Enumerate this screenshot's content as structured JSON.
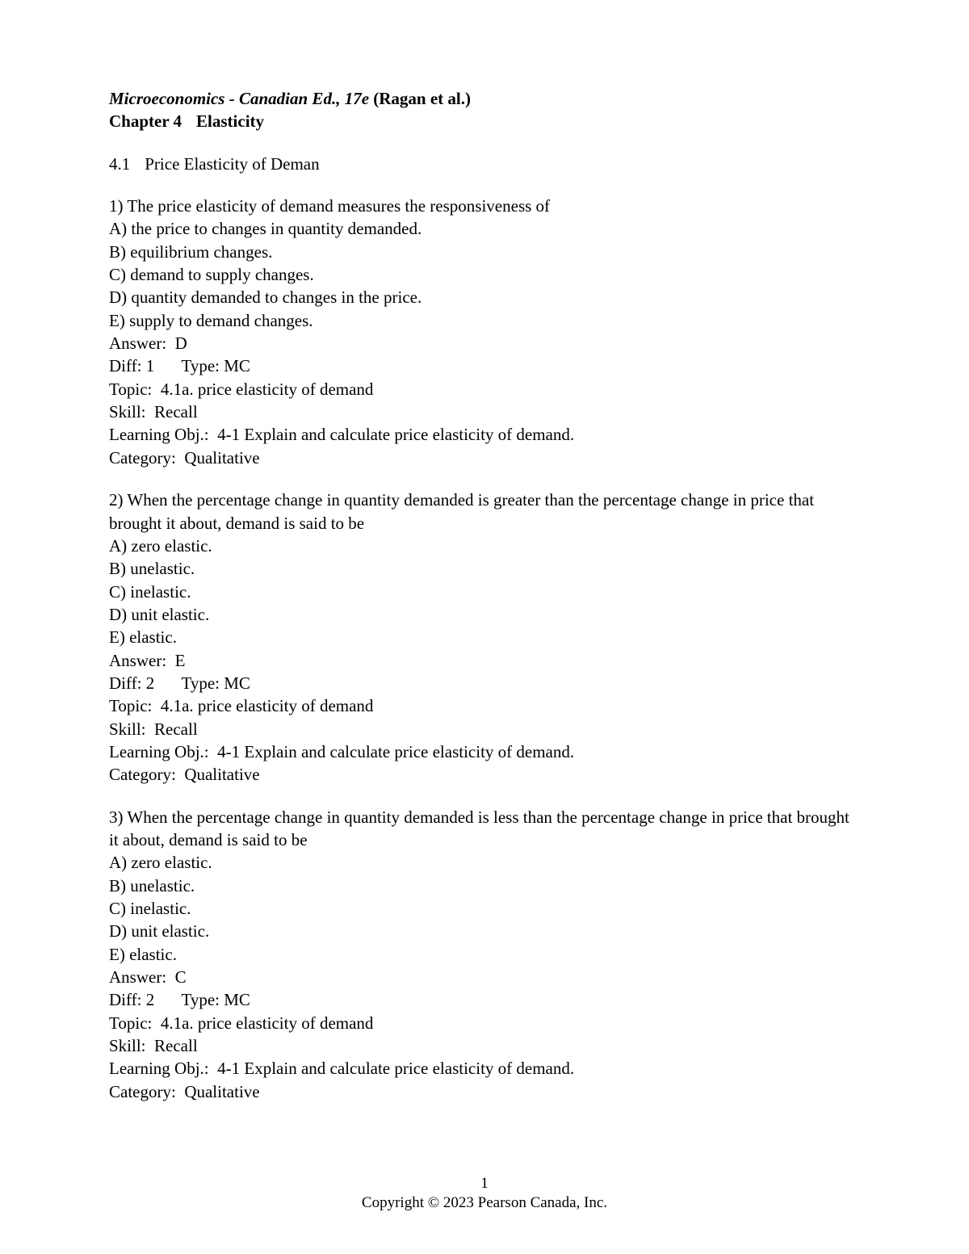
{
  "header": {
    "book_title": "Microeconomics",
    "edition": "Canadian Ed., 17e",
    "authors": "(Ragan et al.)",
    "chapter_label": "Chapter 4",
    "chapter_title": "Elasticity"
  },
  "section": {
    "number": "4.1",
    "title": "Price Elasticity of Deman"
  },
  "questions": [
    {
      "number": "1)",
      "stem": "The price elasticity of demand measures the responsiveness of",
      "options": [
        "A) the price to changes in quantity demanded.",
        "B) equilibrium changes.",
        "C) demand to supply changes.",
        "D) quantity demanded to changes in the price.",
        "E) supply to demand changes."
      ],
      "answer_label": "Answer:",
      "answer": "D",
      "diff_label": "Diff:",
      "diff": "1",
      "type_label": "Type:",
      "type": "MC",
      "topic_label": "Topic:",
      "topic": "4.1a. price elasticity of demand",
      "skill_label": "Skill:",
      "skill": "Recall",
      "obj_label": "Learning Obj.:",
      "obj": "4-1 Explain and calculate price elasticity of demand.",
      "category_label": "Category:",
      "category": "Qualitative"
    },
    {
      "number": "2)",
      "stem": "When the percentage change in quantity demanded is greater than the percentage change in price that brought it about, demand is said to be",
      "options": [
        "A) zero elastic.",
        "B) unelastic.",
        "C) inelastic.",
        "D) unit elastic.",
        "E) elastic."
      ],
      "answer_label": "Answer:",
      "answer": "E",
      "diff_label": "Diff:",
      "diff": "2",
      "type_label": "Type:",
      "type": "MC",
      "topic_label": "Topic:",
      "topic": "4.1a. price elasticity of demand",
      "skill_label": "Skill:",
      "skill": "Recall",
      "obj_label": "Learning Obj.:",
      "obj": "4-1 Explain and calculate price elasticity of demand.",
      "category_label": "Category:",
      "category": "Qualitative"
    },
    {
      "number": "3)",
      "stem": "When the percentage change in quantity demanded is less than the percentage change in price that brought it about, demand is said to be",
      "options": [
        "A) zero elastic.",
        "B) unelastic.",
        "C) inelastic.",
        "D) unit elastic.",
        "E) elastic."
      ],
      "answer_label": "Answer:",
      "answer": "C",
      "diff_label": "Diff:",
      "diff": "2",
      "type_label": "Type:",
      "type": "MC",
      "topic_label": "Topic:",
      "topic": "4.1a. price elasticity of demand",
      "skill_label": "Skill:",
      "skill": "Recall",
      "obj_label": "Learning Obj.:",
      "obj": "4-1 Explain and calculate price elasticity of demand.",
      "category_label": "Category:",
      "category": "Qualitative"
    }
  ],
  "footer": {
    "page_number": "1",
    "copyright": "Copyright © 2023 Pearson Canada, Inc."
  }
}
